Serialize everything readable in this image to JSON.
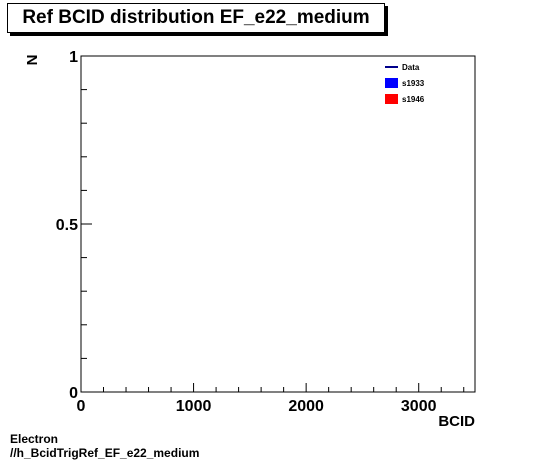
{
  "chart_data": {
    "type": "line",
    "title": "Ref BCID distribution EF_e22_medium",
    "xlabel": "BCID",
    "ylabel": "N",
    "xlim": [
      0,
      3500
    ],
    "ylim": [
      0,
      1
    ],
    "x_ticks": [
      0,
      1000,
      2000,
      3000
    ],
    "x_tick_labels": [
      "0",
      "1000",
      "2000",
      "3000"
    ],
    "y_ticks": [
      0,
      0.5,
      1
    ],
    "y_tick_labels": [
      "0",
      "0.5",
      "1"
    ],
    "grid": false,
    "legend_position": "top-right",
    "series": [
      {
        "name": "Data",
        "values": [],
        "color": "#00008b",
        "style": "line"
      },
      {
        "name": "s1933",
        "values": [],
        "color": "#0000ff",
        "style": "fill"
      },
      {
        "name": "s1946",
        "values": [],
        "color": "#ff0000",
        "style": "fill"
      }
    ]
  },
  "footer": {
    "line1": "Electron",
    "line2": "//h_BcidTrigRef_EF_e22_medium"
  }
}
